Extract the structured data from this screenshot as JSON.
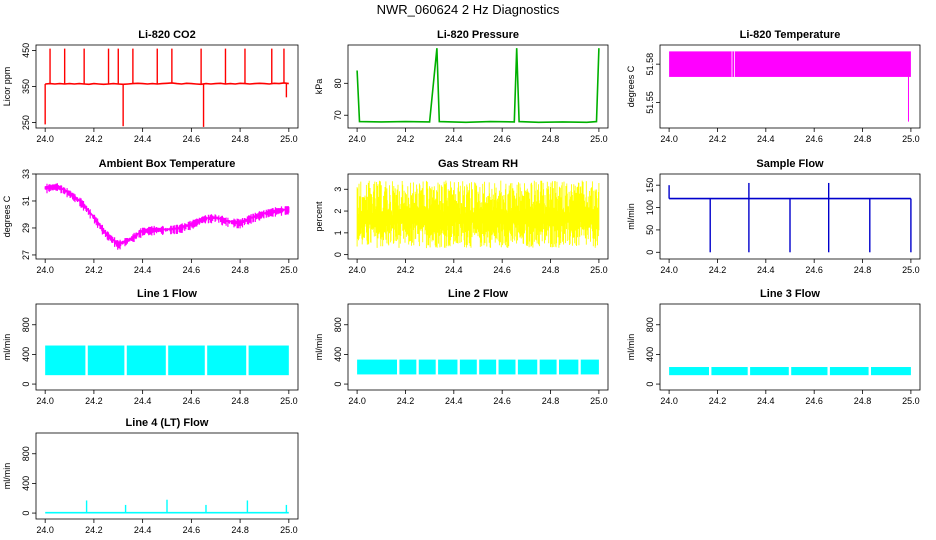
{
  "page": {
    "title": "NWR_060624  2 Hz Diagnostics"
  },
  "chart_data": [
    {
      "type": "line",
      "title": "Li-820 CO2",
      "ylabel": "Licor ppm",
      "xlim": [
        24.0,
        25.0
      ],
      "ylim": [
        235,
        465
      ],
      "x_ticks": [
        "24.0",
        "24.2",
        "24.4",
        "24.6",
        "24.8",
        "25.0"
      ],
      "y_ticks": [
        250,
        350,
        450
      ],
      "color": "#ff0000",
      "series": [
        {
          "x": [
            24.0,
            24.02,
            24.04,
            24.06,
            24.08,
            24.1,
            24.12,
            24.14,
            24.16,
            24.18,
            24.2,
            24.22,
            24.24,
            24.26,
            24.28,
            24.3,
            24.32,
            24.34,
            24.36,
            24.38,
            24.4,
            24.42,
            24.44,
            24.46,
            24.48,
            24.5,
            24.52,
            24.54,
            24.56,
            24.58,
            24.6,
            24.62,
            24.64,
            24.66,
            24.68,
            24.7,
            24.72,
            24.74,
            24.76,
            24.78,
            24.8,
            24.82,
            24.84,
            24.86,
            24.88,
            24.9,
            24.92,
            24.94,
            24.96,
            24.98,
            25.0
          ],
          "values": [
            357,
            358,
            357,
            358,
            357,
            358,
            357,
            358,
            357,
            356,
            358,
            357,
            356,
            357,
            358,
            357,
            356,
            357,
            358,
            359,
            358,
            357,
            358,
            357,
            358,
            359,
            360,
            358,
            357,
            359,
            358,
            357,
            356,
            358,
            357,
            358,
            359,
            357,
            358,
            357,
            359,
            358,
            357,
            358,
            359,
            358,
            357,
            359,
            358,
            360,
            358
          ],
          "spikes": [
            {
              "x": 24.02,
              "y": 455
            },
            {
              "x": 24.08,
              "y": 455
            },
            {
              "x": 24.16,
              "y": 455
            },
            {
              "x": 24.26,
              "y": 455
            },
            {
              "x": 24.3,
              "y": 455
            },
            {
              "x": 24.36,
              "y": 455
            },
            {
              "x": 24.46,
              "y": 455
            },
            {
              "x": 24.52,
              "y": 455
            },
            {
              "x": 24.64,
              "y": 455
            },
            {
              "x": 24.74,
              "y": 455
            },
            {
              "x": 24.82,
              "y": 455
            },
            {
              "x": 24.93,
              "y": 455
            },
            {
              "x": 24.98,
              "y": 455
            },
            {
              "x": 24.0,
              "y": 245
            },
            {
              "x": 24.32,
              "y": 240
            },
            {
              "x": 24.65,
              "y": 238
            },
            {
              "x": 24.99,
              "y": 320
            }
          ]
        }
      ]
    },
    {
      "type": "line",
      "title": "Li-820 Pressure",
      "ylabel": "kPa",
      "xlim": [
        24.0,
        25.0
      ],
      "ylim": [
        66,
        92
      ],
      "x_ticks": [
        "24.0",
        "24.2",
        "24.4",
        "24.6",
        "24.8",
        "25.0"
      ],
      "y_ticks": [
        70,
        80
      ],
      "color": "#00b000",
      "series": [
        {
          "x": [
            24.0,
            24.01,
            24.1,
            24.2,
            24.3,
            24.33,
            24.34,
            24.45,
            24.55,
            24.65,
            24.66,
            24.67,
            24.75,
            24.85,
            24.95,
            24.99,
            25.0
          ],
          "values": [
            84,
            68,
            67.9,
            68,
            67.9,
            91,
            68,
            67.8,
            68,
            67.9,
            91,
            68,
            67.8,
            67.9,
            67.8,
            68,
            91
          ],
          "spikes": []
        }
      ]
    },
    {
      "type": "area",
      "title": "Li-820 Temperature",
      "ylabel": "degrees C",
      "xlim": [
        24.0,
        25.0
      ],
      "ylim": [
        51.53,
        51.595
      ],
      "x_ticks": [
        "24.0",
        "24.2",
        "24.4",
        "24.6",
        "24.8",
        "25.0"
      ],
      "y_ticks": [
        51.55,
        51.58
      ],
      "color": "#ff00ff",
      "band": {
        "lo": 51.57,
        "hi": 51.59
      },
      "series": [],
      "spikes": [
        {
          "x": 24.99,
          "y": 51.535
        }
      ]
    },
    {
      "type": "line",
      "title": "Ambient Box Temperature",
      "ylabel": "degrees C",
      "xlim": [
        24.0,
        25.0
      ],
      "ylim": [
        26.7,
        33.0
      ],
      "x_ticks": [
        "24.0",
        "24.2",
        "24.4",
        "24.6",
        "24.8",
        "25.0"
      ],
      "y_ticks": [
        27,
        29,
        31,
        33
      ],
      "color": "#ff00ff",
      "noise": 0.45,
      "series": [
        {
          "x": [
            24.0,
            24.05,
            24.1,
            24.15,
            24.2,
            24.25,
            24.3,
            24.35,
            24.4,
            24.45,
            24.5,
            24.55,
            24.6,
            24.65,
            24.7,
            24.75,
            24.8,
            24.85,
            24.9,
            24.95,
            25.0
          ],
          "values": [
            32.0,
            32.1,
            31.6,
            30.9,
            29.8,
            28.6,
            27.8,
            28.2,
            28.8,
            28.9,
            28.9,
            29.0,
            29.3,
            29.7,
            29.8,
            29.5,
            29.4,
            29.8,
            30.1,
            30.3,
            30.4
          ],
          "spikes": []
        }
      ]
    },
    {
      "type": "line",
      "title": "Gas Stream RH",
      "ylabel": "percent",
      "xlim": [
        24.0,
        25.0
      ],
      "ylim": [
        -0.2,
        3.7
      ],
      "x_ticks": [
        "24.0",
        "24.2",
        "24.4",
        "24.6",
        "24.8",
        "25.0"
      ],
      "y_ticks": [
        0,
        1,
        2,
        3
      ],
      "color": "#ffff00",
      "noise_band": {
        "lo": 0.3,
        "hi": 3.4
      },
      "series": [
        {
          "x": [
            24.0,
            24.25,
            24.5,
            24.75,
            25.0
          ],
          "values": [
            1.8,
            1.7,
            1.7,
            1.8,
            2.0
          ],
          "spikes": []
        }
      ]
    },
    {
      "type": "line",
      "title": "Sample Flow",
      "ylabel": "ml/min",
      "xlim": [
        24.0,
        25.0
      ],
      "ylim": [
        -15,
        175
      ],
      "x_ticks": [
        "24.0",
        "24.2",
        "24.4",
        "24.6",
        "24.8",
        "25.0"
      ],
      "y_ticks": [
        0,
        50,
        100,
        150
      ],
      "color": "#0000cc",
      "series": [
        {
          "x": [
            24.0,
            24.2,
            24.4,
            24.6,
            24.8,
            25.0
          ],
          "values": [
            120,
            120,
            120,
            120,
            120,
            120
          ],
          "spikes": [
            {
              "x": 24.0,
              "y": 150
            },
            {
              "x": 24.17,
              "y": 0
            },
            {
              "x": 24.33,
              "y": 0
            },
            {
              "x": 24.33,
              "y": 155
            },
            {
              "x": 24.5,
              "y": 0
            },
            {
              "x": 24.66,
              "y": 0
            },
            {
              "x": 24.66,
              "y": 155
            },
            {
              "x": 24.83,
              "y": 0
            },
            {
              "x": 25.0,
              "y": 0
            }
          ]
        }
      ]
    },
    {
      "type": "area",
      "title": "Line 1 Flow",
      "ylabel": "ml/min",
      "xlim": [
        24.0,
        25.0
      ],
      "ylim": [
        -80,
        1080
      ],
      "x_ticks": [
        "24.0",
        "24.2",
        "24.4",
        "24.6",
        "24.8",
        "25.0"
      ],
      "y_ticks": [
        0,
        400,
        800
      ],
      "color": "#00ffff",
      "band": {
        "lo": 120,
        "hi": 520
      },
      "gaps": [
        24.17,
        24.33,
        24.5,
        24.66,
        24.83
      ],
      "series": [],
      "spikes": []
    },
    {
      "type": "area",
      "title": "Line 2 Flow",
      "ylabel": "ml/min",
      "xlim": [
        24.0,
        25.0
      ],
      "ylim": [
        -80,
        1080
      ],
      "x_ticks": [
        "24.0",
        "24.2",
        "24.4",
        "24.6",
        "24.8",
        "25.0"
      ],
      "y_ticks": [
        0,
        400,
        800
      ],
      "color": "#00ffff",
      "band": {
        "lo": 130,
        "hi": 330
      },
      "gaps": [
        24.17,
        24.25,
        24.33,
        24.42,
        24.5,
        24.58,
        24.66,
        24.75,
        24.83,
        24.92
      ],
      "series": [],
      "spikes": []
    },
    {
      "type": "area",
      "title": "Line 3 Flow",
      "ylabel": "ml/min",
      "xlim": [
        24.0,
        25.0
      ],
      "ylim": [
        -80,
        1080
      ],
      "x_ticks": [
        "24.0",
        "24.2",
        "24.4",
        "24.6",
        "24.8",
        "25.0"
      ],
      "y_ticks": [
        0,
        400,
        800
      ],
      "color": "#00ffff",
      "band": {
        "lo": 120,
        "hi": 230
      },
      "gaps": [
        24.17,
        24.33,
        24.5,
        24.66,
        24.83
      ],
      "series": [],
      "spikes": []
    },
    {
      "type": "line",
      "title": "Line 4 (LT) Flow",
      "ylabel": "ml/min",
      "xlim": [
        24.0,
        25.0
      ],
      "ylim": [
        -80,
        1080
      ],
      "x_ticks": [
        "24.0",
        "24.2",
        "24.4",
        "24.6",
        "24.8",
        "25.0"
      ],
      "y_ticks": [
        0,
        400,
        800
      ],
      "color": "#00ffff",
      "series": [
        {
          "x": [
            24.0,
            25.0
          ],
          "values": [
            5,
            5
          ],
          "spikes": [
            {
              "x": 24.17,
              "y": 170
            },
            {
              "x": 24.33,
              "y": 110
            },
            {
              "x": 24.5,
              "y": 180
            },
            {
              "x": 24.66,
              "y": 110
            },
            {
              "x": 24.83,
              "y": 170
            },
            {
              "x": 24.99,
              "y": 110
            }
          ]
        }
      ]
    }
  ]
}
